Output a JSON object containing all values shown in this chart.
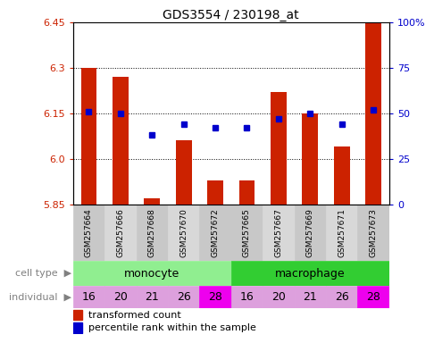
{
  "title": "GDS3554 / 230198_at",
  "samples": [
    "GSM257664",
    "GSM257666",
    "GSM257668",
    "GSM257670",
    "GSM257672",
    "GSM257665",
    "GSM257667",
    "GSM257669",
    "GSM257671",
    "GSM257673"
  ],
  "transformed_count": [
    6.3,
    6.27,
    5.87,
    6.06,
    5.93,
    5.93,
    6.22,
    6.15,
    6.04,
    6.45
  ],
  "percentile_rank": [
    51,
    50,
    38,
    44,
    42,
    42,
    47,
    50,
    44,
    52
  ],
  "ylim_left": [
    5.85,
    6.45
  ],
  "ylim_right": [
    0,
    100
  ],
  "yticks_left": [
    5.85,
    6.0,
    6.15,
    6.3,
    6.45
  ],
  "yticks_right": [
    0,
    25,
    50,
    75,
    100
  ],
  "ytick_labels_right": [
    "0",
    "25",
    "50",
    "75",
    "100%"
  ],
  "individuals": [
    "16",
    "20",
    "21",
    "26",
    "28",
    "16",
    "20",
    "21",
    "26",
    "28"
  ],
  "monocyte_color": "#90EE90",
  "macrophage_color": "#32CD32",
  "bar_color": "#CC2200",
  "dot_color": "#0000CC",
  "bar_width": 0.5,
  "legend_red": "transformed count",
  "legend_blue": "percentile rank within the sample",
  "dotted_lines": [
    6.0,
    6.15,
    6.3
  ],
  "sample_box_colors": [
    "#C8C8C8",
    "#D8D8D8",
    "#C8C8C8",
    "#D8D8D8",
    "#C8C8C8",
    "#C8C8C8",
    "#D8D8D8",
    "#C8C8C8",
    "#D8D8D8",
    "#C8C8C8"
  ],
  "individual_bg_colors": [
    "#DDA0DD",
    "#DDA0DD",
    "#DDA0DD",
    "#DDA0DD",
    "#EE00EE",
    "#DDA0DD",
    "#DDA0DD",
    "#DDA0DD",
    "#DDA0DD",
    "#EE00EE"
  ]
}
